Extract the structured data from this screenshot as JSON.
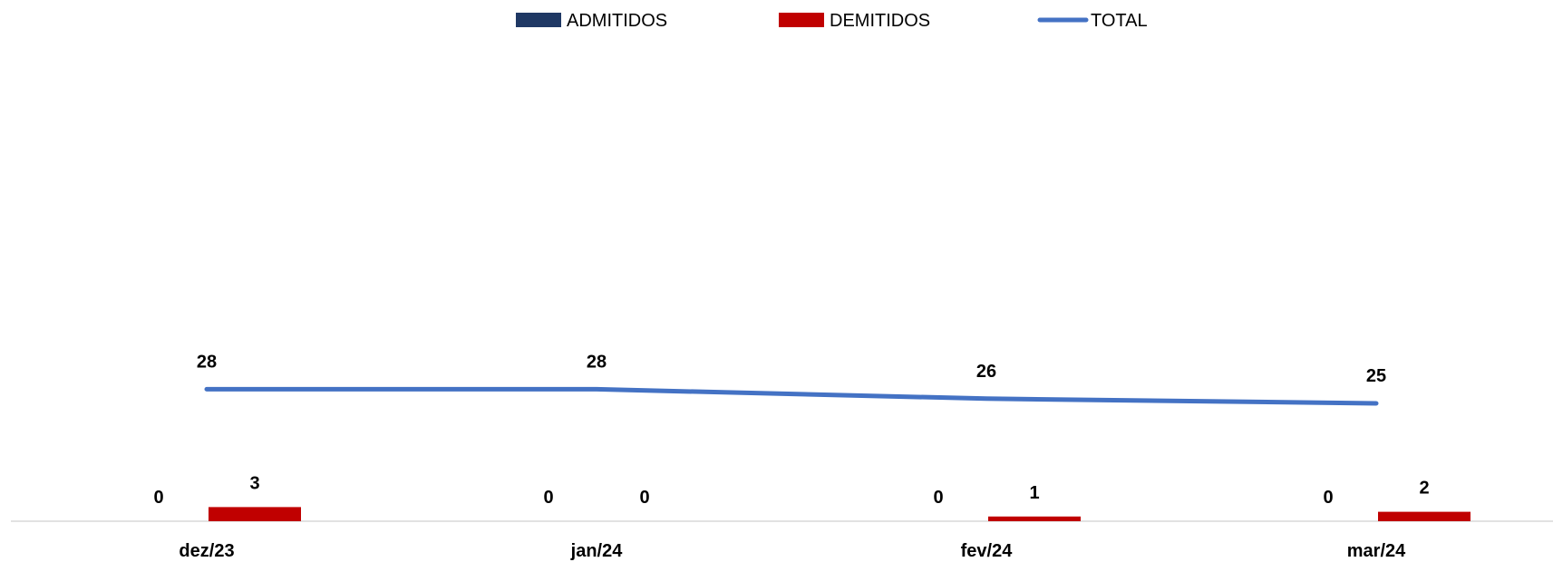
{
  "chart_data": {
    "type": "bar",
    "categories": [
      "dez/23",
      "jan/24",
      "fev/24",
      "mar/24"
    ],
    "series": [
      {
        "name": "ADMITIDOS",
        "kind": "bar",
        "color": "#1F3864",
        "values": [
          0,
          0,
          0,
          0
        ]
      },
      {
        "name": "DEMITIDOS",
        "kind": "bar",
        "color": "#C00000",
        "values": [
          3,
          0,
          1,
          2
        ]
      },
      {
        "name": "TOTAL",
        "kind": "line",
        "color": "#4472C4",
        "values": [
          28,
          28,
          26,
          25
        ]
      }
    ],
    "ylim": [
      0,
      100
    ],
    "grid": false,
    "legend_position": "top"
  }
}
